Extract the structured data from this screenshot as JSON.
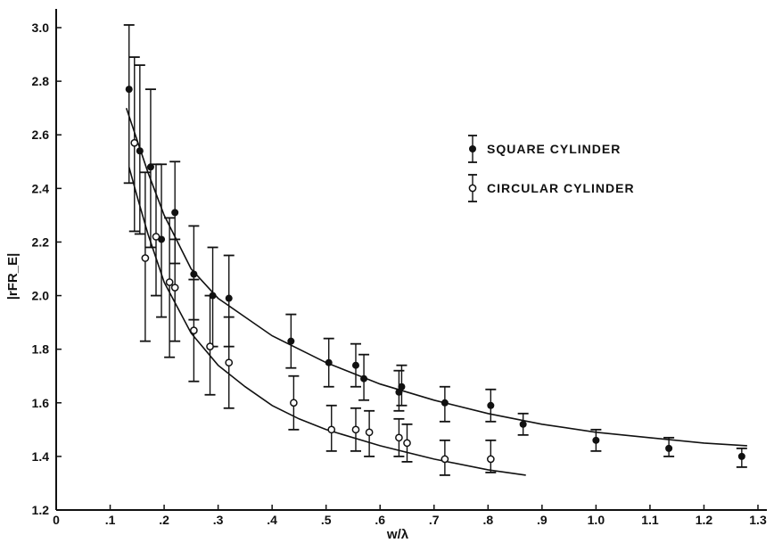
{
  "chart_data": {
    "type": "scatter",
    "title": "",
    "xlabel": "w/λ",
    "ylabel": "|rFR_E|",
    "xlim": [
      0,
      1.3
    ],
    "ylim": [
      1.2,
      3.0
    ],
    "x_ticks": [
      {
        "v": 0,
        "label": "0"
      },
      {
        "v": 0.1,
        "label": ".1"
      },
      {
        "v": 0.2,
        "label": ".2"
      },
      {
        "v": 0.3,
        "label": ".3"
      },
      {
        "v": 0.4,
        "label": ".4"
      },
      {
        "v": 0.5,
        "label": ".5"
      },
      {
        "v": 0.6,
        "label": ".6"
      },
      {
        "v": 0.7,
        "label": ".7"
      },
      {
        "v": 0.8,
        "label": ".8"
      },
      {
        "v": 0.9,
        "label": ".9"
      },
      {
        "v": 1.0,
        "label": "1.0"
      },
      {
        "v": 1.1,
        "label": "1.1"
      },
      {
        "v": 1.2,
        "label": "1.2"
      },
      {
        "v": 1.3,
        "label": "1.3"
      }
    ],
    "y_ticks": [
      {
        "v": 1.2,
        "label": "1.2"
      },
      {
        "v": 1.4,
        "label": "1.4"
      },
      {
        "v": 1.6,
        "label": "1.6"
      },
      {
        "v": 1.8,
        "label": "1.8"
      },
      {
        "v": 2.0,
        "label": "2.0"
      },
      {
        "v": 2.2,
        "label": "2.2"
      },
      {
        "v": 2.4,
        "label": "2.4"
      },
      {
        "v": 2.6,
        "label": "2.6"
      },
      {
        "v": 2.8,
        "label": "2.8"
      },
      {
        "v": 3.0,
        "label": "3.0"
      }
    ],
    "grid": false,
    "legend_position": "top-right",
    "series": [
      {
        "name": "SQUARE CYLINDER",
        "marker": "filled-circle",
        "color": "#111111",
        "points": [
          {
            "x": 0.135,
            "y": 2.77,
            "lo": 2.42,
            "hi": 3.01
          },
          {
            "x": 0.155,
            "y": 2.54,
            "lo": 2.23,
            "hi": 2.86
          },
          {
            "x": 0.175,
            "y": 2.48,
            "lo": 2.18,
            "hi": 2.77
          },
          {
            "x": 0.195,
            "y": 2.21,
            "lo": 1.92,
            "hi": 2.49
          },
          {
            "x": 0.22,
            "y": 2.31,
            "lo": 2.12,
            "hi": 2.5
          },
          {
            "x": 0.255,
            "y": 2.08,
            "lo": 1.91,
            "hi": 2.26
          },
          {
            "x": 0.29,
            "y": 2.0,
            "lo": 1.81,
            "hi": 2.18
          },
          {
            "x": 0.32,
            "y": 1.99,
            "lo": 1.81,
            "hi": 2.15
          },
          {
            "x": 0.435,
            "y": 1.83,
            "lo": 1.73,
            "hi": 1.93
          },
          {
            "x": 0.505,
            "y": 1.75,
            "lo": 1.66,
            "hi": 1.84
          },
          {
            "x": 0.555,
            "y": 1.74,
            "lo": 1.66,
            "hi": 1.82
          },
          {
            "x": 0.57,
            "y": 1.69,
            "lo": 1.61,
            "hi": 1.78
          },
          {
            "x": 0.635,
            "y": 1.64,
            "lo": 1.57,
            "hi": 1.72
          },
          {
            "x": 0.64,
            "y": 1.66,
            "lo": 1.59,
            "hi": 1.74
          },
          {
            "x": 0.72,
            "y": 1.6,
            "lo": 1.53,
            "hi": 1.66
          },
          {
            "x": 0.805,
            "y": 1.59,
            "lo": 1.53,
            "hi": 1.65
          },
          {
            "x": 0.865,
            "y": 1.52,
            "lo": 1.48,
            "hi": 1.56
          },
          {
            "x": 1.0,
            "y": 1.46,
            "lo": 1.42,
            "hi": 1.5
          },
          {
            "x": 1.135,
            "y": 1.43,
            "lo": 1.4,
            "hi": 1.47
          },
          {
            "x": 1.27,
            "y": 1.4,
            "lo": 1.36,
            "hi": 1.43
          }
        ],
        "fit_curve": [
          [
            0.13,
            2.7
          ],
          [
            0.15,
            2.58
          ],
          [
            0.17,
            2.46
          ],
          [
            0.2,
            2.3
          ],
          [
            0.25,
            2.1
          ],
          [
            0.3,
            1.99
          ],
          [
            0.35,
            1.92
          ],
          [
            0.4,
            1.85
          ],
          [
            0.5,
            1.75
          ],
          [
            0.6,
            1.67
          ],
          [
            0.7,
            1.61
          ],
          [
            0.8,
            1.56
          ],
          [
            0.9,
            1.52
          ],
          [
            1.0,
            1.49
          ],
          [
            1.1,
            1.47
          ],
          [
            1.2,
            1.45
          ],
          [
            1.28,
            1.44
          ]
        ]
      },
      {
        "name": "CIRCULAR CYLINDER",
        "marker": "open-circle",
        "color": "#111111",
        "points": [
          {
            "x": 0.145,
            "y": 2.57,
            "lo": 2.24,
            "hi": 2.89
          },
          {
            "x": 0.165,
            "y": 2.14,
            "lo": 1.83,
            "hi": 2.46
          },
          {
            "x": 0.185,
            "y": 2.22,
            "lo": 2.0,
            "hi": 2.49
          },
          {
            "x": 0.21,
            "y": 2.05,
            "lo": 1.77,
            "hi": 2.29
          },
          {
            "x": 0.22,
            "y": 2.03,
            "lo": 1.83,
            "hi": 2.21
          },
          {
            "x": 0.255,
            "y": 1.87,
            "lo": 1.68,
            "hi": 2.06
          },
          {
            "x": 0.285,
            "y": 1.81,
            "lo": 1.63,
            "hi": 2.0
          },
          {
            "x": 0.32,
            "y": 1.75,
            "lo": 1.58,
            "hi": 1.92
          },
          {
            "x": 0.44,
            "y": 1.6,
            "lo": 1.5,
            "hi": 1.7
          },
          {
            "x": 0.51,
            "y": 1.5,
            "lo": 1.42,
            "hi": 1.59
          },
          {
            "x": 0.555,
            "y": 1.5,
            "lo": 1.42,
            "hi": 1.58
          },
          {
            "x": 0.58,
            "y": 1.49,
            "lo": 1.4,
            "hi": 1.57
          },
          {
            "x": 0.635,
            "y": 1.47,
            "lo": 1.4,
            "hi": 1.54
          },
          {
            "x": 0.65,
            "y": 1.45,
            "lo": 1.38,
            "hi": 1.52
          },
          {
            "x": 0.72,
            "y": 1.39,
            "lo": 1.33,
            "hi": 1.46
          },
          {
            "x": 0.805,
            "y": 1.39,
            "lo": 1.34,
            "hi": 1.46
          }
        ],
        "fit_curve": [
          [
            0.135,
            2.48
          ],
          [
            0.15,
            2.37
          ],
          [
            0.17,
            2.23
          ],
          [
            0.2,
            2.05
          ],
          [
            0.25,
            1.86
          ],
          [
            0.3,
            1.74
          ],
          [
            0.35,
            1.66
          ],
          [
            0.4,
            1.59
          ],
          [
            0.45,
            1.54
          ],
          [
            0.5,
            1.5
          ],
          [
            0.6,
            1.44
          ],
          [
            0.7,
            1.39
          ],
          [
            0.8,
            1.35
          ],
          [
            0.87,
            1.33
          ]
        ]
      }
    ]
  }
}
